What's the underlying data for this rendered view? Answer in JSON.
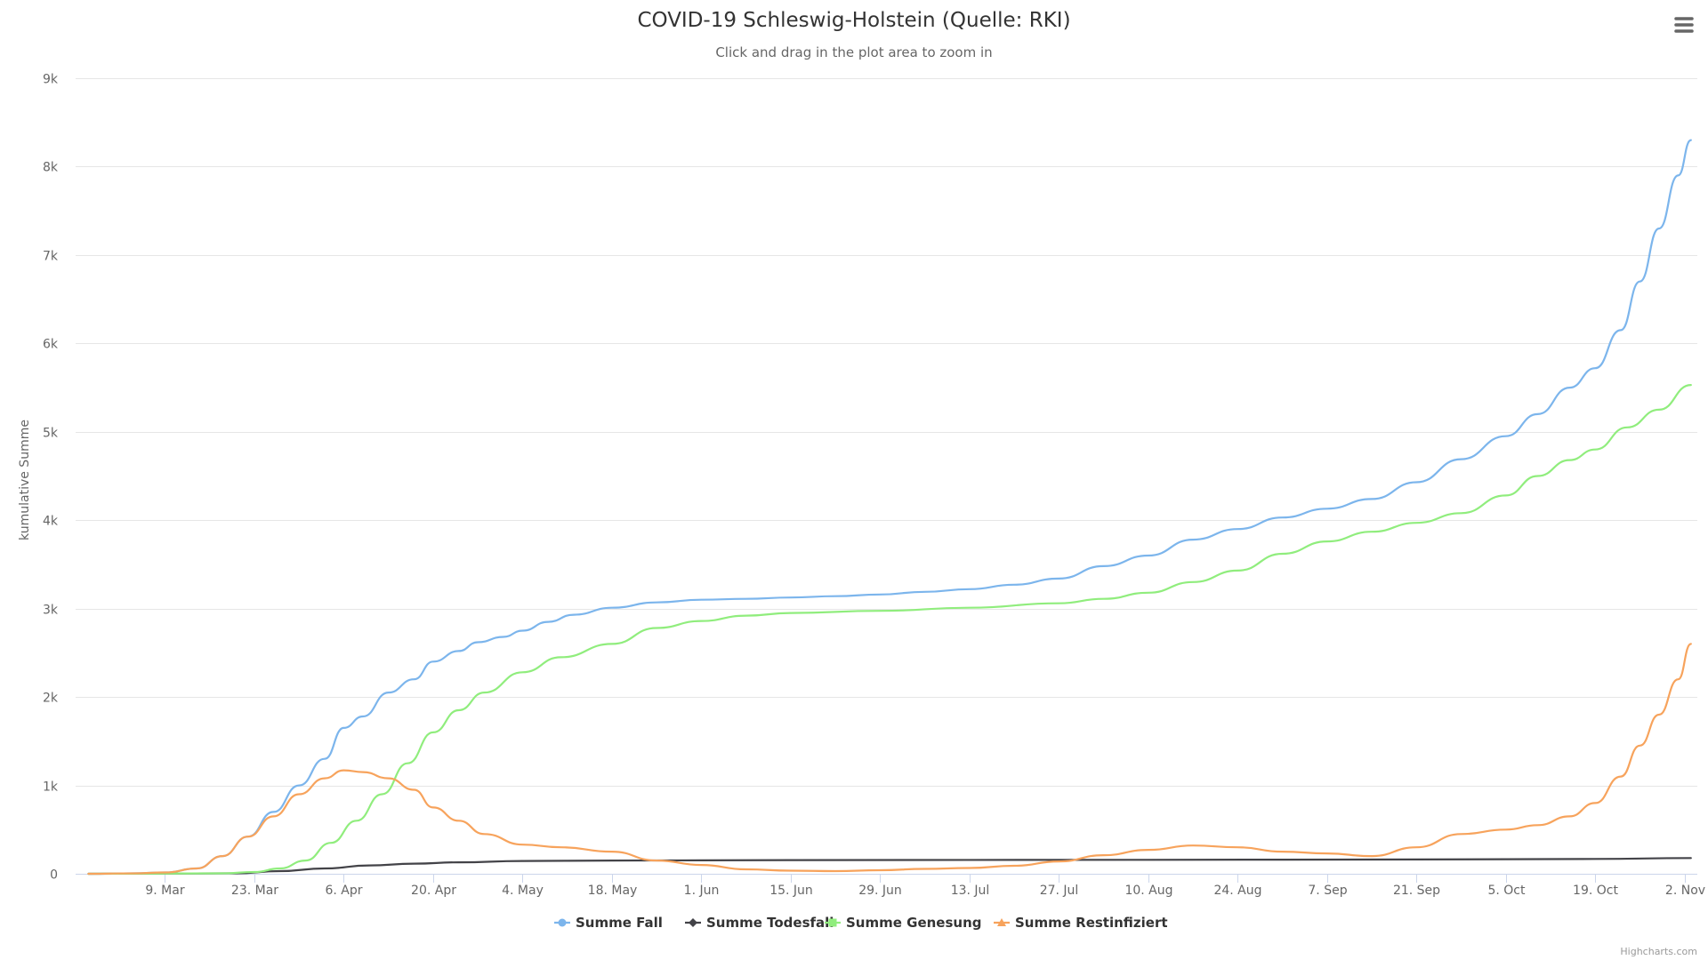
{
  "chart_data": {
    "type": "line",
    "title": "COVID-19 Schleswig-Holstein (Quelle: RKI)",
    "subtitle": "Click and drag in the plot area to zoom in",
    "ylabel": "kumulative Summe",
    "ylim": [
      0,
      9000
    ],
    "yticks": [
      "0",
      "1k",
      "2k",
      "3k",
      "4k",
      "5k",
      "6k",
      "7k",
      "8k",
      "9k"
    ],
    "ytick_values": [
      0,
      1000,
      2000,
      3000,
      4000,
      5000,
      6000,
      7000,
      8000,
      9000
    ],
    "xlim": [
      "2020-02-24",
      "2020-11-04"
    ],
    "xticks": [
      {
        "label": "9. Mar",
        "date": "2020-03-09"
      },
      {
        "label": "23. Mar",
        "date": "2020-03-23"
      },
      {
        "label": "6. Apr",
        "date": "2020-04-06"
      },
      {
        "label": "20. Apr",
        "date": "2020-04-20"
      },
      {
        "label": "4. May",
        "date": "2020-05-04"
      },
      {
        "label": "18. May",
        "date": "2020-05-18"
      },
      {
        "label": "1. Jun",
        "date": "2020-06-01"
      },
      {
        "label": "15. Jun",
        "date": "2020-06-15"
      },
      {
        "label": "29. Jun",
        "date": "2020-06-29"
      },
      {
        "label": "13. Jul",
        "date": "2020-07-13"
      },
      {
        "label": "27. Jul",
        "date": "2020-07-27"
      },
      {
        "label": "10. Aug",
        "date": "2020-08-10"
      },
      {
        "label": "24. Aug",
        "date": "2020-08-24"
      },
      {
        "label": "7. Sep",
        "date": "2020-09-07"
      },
      {
        "label": "21. Sep",
        "date": "2020-09-21"
      },
      {
        "label": "5. Oct",
        "date": "2020-10-05"
      },
      {
        "label": "19. Oct",
        "date": "2020-10-19"
      },
      {
        "label": "2. Nov",
        "date": "2020-11-02"
      }
    ],
    "grid": true,
    "legend_position": "bottom-center",
    "series": [
      {
        "name": "Summe Fall",
        "color": "#7cb5ec",
        "marker": "circle",
        "points": [
          [
            "2020-02-26",
            0
          ],
          [
            "2020-03-04",
            5
          ],
          [
            "2020-03-09",
            15
          ],
          [
            "2020-03-14",
            60
          ],
          [
            "2020-03-18",
            200
          ],
          [
            "2020-03-22",
            420
          ],
          [
            "2020-03-26",
            700
          ],
          [
            "2020-03-30",
            1000
          ],
          [
            "2020-04-03",
            1300
          ],
          [
            "2020-04-06",
            1650
          ],
          [
            "2020-04-09",
            1780
          ],
          [
            "2020-04-13",
            2050
          ],
          [
            "2020-04-17",
            2200
          ],
          [
            "2020-04-20",
            2400
          ],
          [
            "2020-04-24",
            2520
          ],
          [
            "2020-04-27",
            2620
          ],
          [
            "2020-05-01",
            2680
          ],
          [
            "2020-05-04",
            2750
          ],
          [
            "2020-05-08",
            2850
          ],
          [
            "2020-05-12",
            2930
          ],
          [
            "2020-05-18",
            3010
          ],
          [
            "2020-05-25",
            3070
          ],
          [
            "2020-06-01",
            3100
          ],
          [
            "2020-06-08",
            3110
          ],
          [
            "2020-06-15",
            3125
          ],
          [
            "2020-06-22",
            3140
          ],
          [
            "2020-06-29",
            3160
          ],
          [
            "2020-07-06",
            3190
          ],
          [
            "2020-07-13",
            3220
          ],
          [
            "2020-07-20",
            3270
          ],
          [
            "2020-07-27",
            3340
          ],
          [
            "2020-08-03",
            3480
          ],
          [
            "2020-08-10",
            3600
          ],
          [
            "2020-08-17",
            3780
          ],
          [
            "2020-08-24",
            3900
          ],
          [
            "2020-08-31",
            4030
          ],
          [
            "2020-09-07",
            4130
          ],
          [
            "2020-09-14",
            4240
          ],
          [
            "2020-09-21",
            4430
          ],
          [
            "2020-09-28",
            4690
          ],
          [
            "2020-10-05",
            4950
          ],
          [
            "2020-10-10",
            5200
          ],
          [
            "2020-10-15",
            5500
          ],
          [
            "2020-10-19",
            5720
          ],
          [
            "2020-10-23",
            6150
          ],
          [
            "2020-10-26",
            6700
          ],
          [
            "2020-10-29",
            7300
          ],
          [
            "2020-11-01",
            7900
          ],
          [
            "2020-11-03",
            8300
          ]
        ]
      },
      {
        "name": "Summe Todesfall",
        "color": "#434348",
        "marker": "diamond",
        "points": [
          [
            "2020-02-26",
            0
          ],
          [
            "2020-03-20",
            5
          ],
          [
            "2020-03-27",
            30
          ],
          [
            "2020-04-03",
            60
          ],
          [
            "2020-04-10",
            95
          ],
          [
            "2020-04-17",
            115
          ],
          [
            "2020-04-24",
            130
          ],
          [
            "2020-05-04",
            145
          ],
          [
            "2020-05-18",
            150
          ],
          [
            "2020-06-15",
            155
          ],
          [
            "2020-08-10",
            158
          ],
          [
            "2020-09-21",
            162
          ],
          [
            "2020-10-19",
            168
          ],
          [
            "2020-11-03",
            178
          ]
        ]
      },
      {
        "name": "Summe Genesung",
        "color": "#90ed7d",
        "marker": "square",
        "points": [
          [
            "2020-02-26",
            0
          ],
          [
            "2020-03-18",
            5
          ],
          [
            "2020-03-23",
            20
          ],
          [
            "2020-03-27",
            60
          ],
          [
            "2020-03-31",
            150
          ],
          [
            "2020-04-04",
            350
          ],
          [
            "2020-04-08",
            600
          ],
          [
            "2020-04-12",
            900
          ],
          [
            "2020-04-16",
            1250
          ],
          [
            "2020-04-20",
            1600
          ],
          [
            "2020-04-24",
            1850
          ],
          [
            "2020-04-28",
            2050
          ],
          [
            "2020-05-04",
            2280
          ],
          [
            "2020-05-10",
            2450
          ],
          [
            "2020-05-18",
            2600
          ],
          [
            "2020-05-25",
            2780
          ],
          [
            "2020-06-01",
            2860
          ],
          [
            "2020-06-08",
            2920
          ],
          [
            "2020-06-15",
            2950
          ],
          [
            "2020-06-29",
            2975
          ],
          [
            "2020-07-13",
            3010
          ],
          [
            "2020-07-27",
            3060
          ],
          [
            "2020-08-03",
            3110
          ],
          [
            "2020-08-10",
            3180
          ],
          [
            "2020-08-17",
            3300
          ],
          [
            "2020-08-24",
            3430
          ],
          [
            "2020-08-31",
            3620
          ],
          [
            "2020-09-07",
            3760
          ],
          [
            "2020-09-14",
            3870
          ],
          [
            "2020-09-21",
            3970
          ],
          [
            "2020-09-28",
            4080
          ],
          [
            "2020-10-05",
            4280
          ],
          [
            "2020-10-10",
            4500
          ],
          [
            "2020-10-15",
            4680
          ],
          [
            "2020-10-19",
            4800
          ],
          [
            "2020-10-24",
            5050
          ],
          [
            "2020-10-29",
            5250
          ],
          [
            "2020-11-03",
            5530
          ]
        ]
      },
      {
        "name": "Summe Restinfiziert",
        "color": "#f7a35c",
        "marker": "triangle",
        "points": [
          [
            "2020-02-26",
            0
          ],
          [
            "2020-03-04",
            5
          ],
          [
            "2020-03-09",
            15
          ],
          [
            "2020-03-14",
            60
          ],
          [
            "2020-03-18",
            200
          ],
          [
            "2020-03-22",
            420
          ],
          [
            "2020-03-26",
            650
          ],
          [
            "2020-03-30",
            900
          ],
          [
            "2020-04-03",
            1080
          ],
          [
            "2020-04-06",
            1170
          ],
          [
            "2020-04-09",
            1150
          ],
          [
            "2020-04-13",
            1080
          ],
          [
            "2020-04-17",
            950
          ],
          [
            "2020-04-20",
            750
          ],
          [
            "2020-04-24",
            600
          ],
          [
            "2020-04-28",
            450
          ],
          [
            "2020-05-04",
            330
          ],
          [
            "2020-05-10",
            300
          ],
          [
            "2020-05-18",
            250
          ],
          [
            "2020-05-25",
            150
          ],
          [
            "2020-06-01",
            100
          ],
          [
            "2020-06-08",
            50
          ],
          [
            "2020-06-15",
            35
          ],
          [
            "2020-06-22",
            30
          ],
          [
            "2020-06-29",
            40
          ],
          [
            "2020-07-06",
            55
          ],
          [
            "2020-07-13",
            65
          ],
          [
            "2020-07-20",
            90
          ],
          [
            "2020-07-27",
            140
          ],
          [
            "2020-08-03",
            210
          ],
          [
            "2020-08-10",
            270
          ],
          [
            "2020-08-17",
            320
          ],
          [
            "2020-08-24",
            300
          ],
          [
            "2020-08-31",
            250
          ],
          [
            "2020-09-07",
            230
          ],
          [
            "2020-09-14",
            200
          ],
          [
            "2020-09-21",
            300
          ],
          [
            "2020-09-28",
            450
          ],
          [
            "2020-10-05",
            500
          ],
          [
            "2020-10-10",
            550
          ],
          [
            "2020-10-15",
            650
          ],
          [
            "2020-10-19",
            800
          ],
          [
            "2020-10-23",
            1100
          ],
          [
            "2020-10-26",
            1450
          ],
          [
            "2020-10-29",
            1800
          ],
          [
            "2020-11-01",
            2200
          ],
          [
            "2020-11-03",
            2600
          ]
        ]
      }
    ]
  },
  "credits": "Highcharts.com",
  "menu": {
    "icon": "hamburger-menu-icon"
  }
}
